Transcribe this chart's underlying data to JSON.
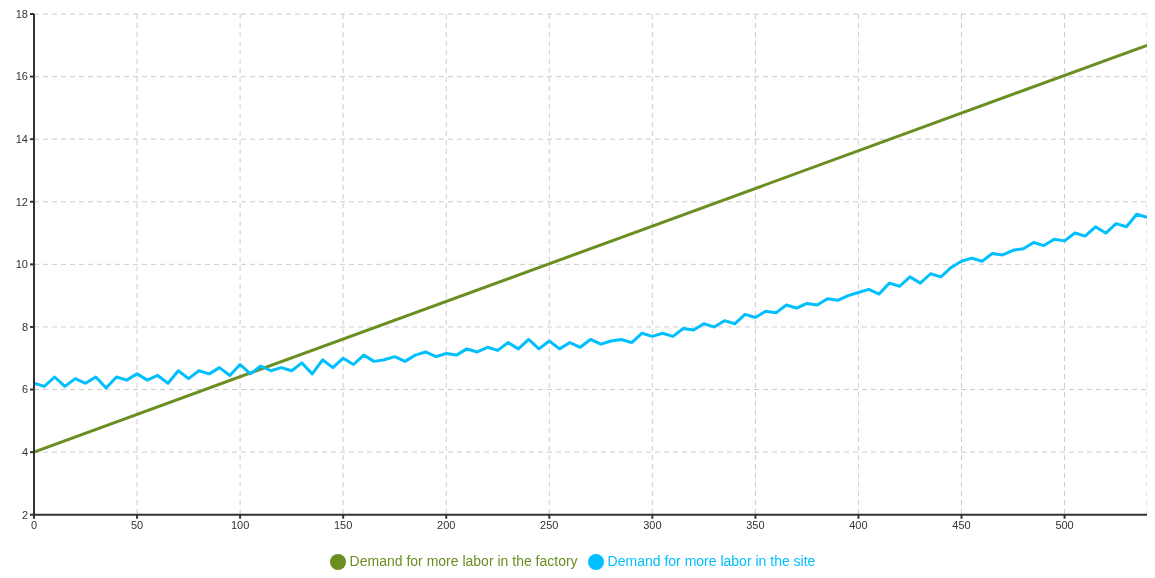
{
  "chart_data": {
    "type": "line",
    "xlim": [
      0,
      540
    ],
    "ylim": [
      2,
      18
    ],
    "xticks": [
      0,
      50,
      100,
      150,
      200,
      250,
      300,
      350,
      400,
      450,
      500
    ],
    "yticks": [
      2,
      4,
      6,
      8,
      10,
      12,
      14,
      16,
      18
    ],
    "grid": true,
    "legend": "bottom",
    "marker": "none",
    "line_style": "solid",
    "series": [
      {
        "name": "Demand for more labor in the factory",
        "color": "#6b8e23",
        "x": [
          0,
          540
        ],
        "values": [
          4,
          17
        ]
      },
      {
        "name": "Demand for more labor in the site",
        "color": "#00bfff",
        "x": [
          0,
          5,
          10,
          15,
          20,
          25,
          30,
          35,
          40,
          45,
          50,
          55,
          60,
          65,
          70,
          75,
          80,
          85,
          90,
          95,
          100,
          105,
          110,
          115,
          120,
          125,
          130,
          135,
          140,
          145,
          150,
          155,
          160,
          165,
          170,
          175,
          180,
          185,
          190,
          195,
          200,
          205,
          210,
          215,
          220,
          225,
          230,
          235,
          240,
          245,
          250,
          255,
          260,
          265,
          270,
          275,
          280,
          285,
          290,
          295,
          300,
          305,
          310,
          315,
          320,
          325,
          330,
          335,
          340,
          345,
          350,
          355,
          360,
          365,
          370,
          375,
          380,
          385,
          390,
          395,
          400,
          405,
          410,
          415,
          420,
          425,
          430,
          435,
          440,
          445,
          450,
          455,
          460,
          465,
          470,
          475,
          480,
          485,
          490,
          495,
          500,
          505,
          510,
          515,
          520,
          525,
          530,
          535,
          540
        ],
        "values": [
          6.2,
          6.1,
          6.4,
          6.1,
          6.35,
          6.2,
          6.4,
          6.05,
          6.4,
          6.3,
          6.5,
          6.3,
          6.45,
          6.2,
          6.6,
          6.35,
          6.6,
          6.5,
          6.7,
          6.45,
          6.8,
          6.5,
          6.75,
          6.6,
          6.7,
          6.6,
          6.85,
          6.5,
          6.95,
          6.7,
          7.0,
          6.8,
          7.1,
          6.9,
          6.95,
          7.05,
          6.9,
          7.1,
          7.2,
          7.05,
          7.15,
          7.1,
          7.3,
          7.2,
          7.35,
          7.25,
          7.5,
          7.3,
          7.6,
          7.3,
          7.55,
          7.3,
          7.5,
          7.35,
          7.6,
          7.45,
          7.55,
          7.6,
          7.5,
          7.8,
          7.7,
          7.8,
          7.7,
          7.95,
          7.9,
          8.1,
          8.0,
          8.2,
          8.1,
          8.4,
          8.3,
          8.5,
          8.45,
          8.7,
          8.6,
          8.75,
          8.7,
          8.9,
          8.85,
          9.0,
          9.1,
          9.2,
          9.05,
          9.4,
          9.3,
          9.6,
          9.4,
          9.7,
          9.6,
          9.9,
          10.1,
          10.2,
          10.1,
          10.35,
          10.3,
          10.45,
          10.5,
          10.7,
          10.6,
          10.8,
          10.75,
          11.0,
          10.9,
          11.2,
          11.0,
          11.3,
          11.2,
          11.6,
          11.5
        ]
      }
    ]
  }
}
